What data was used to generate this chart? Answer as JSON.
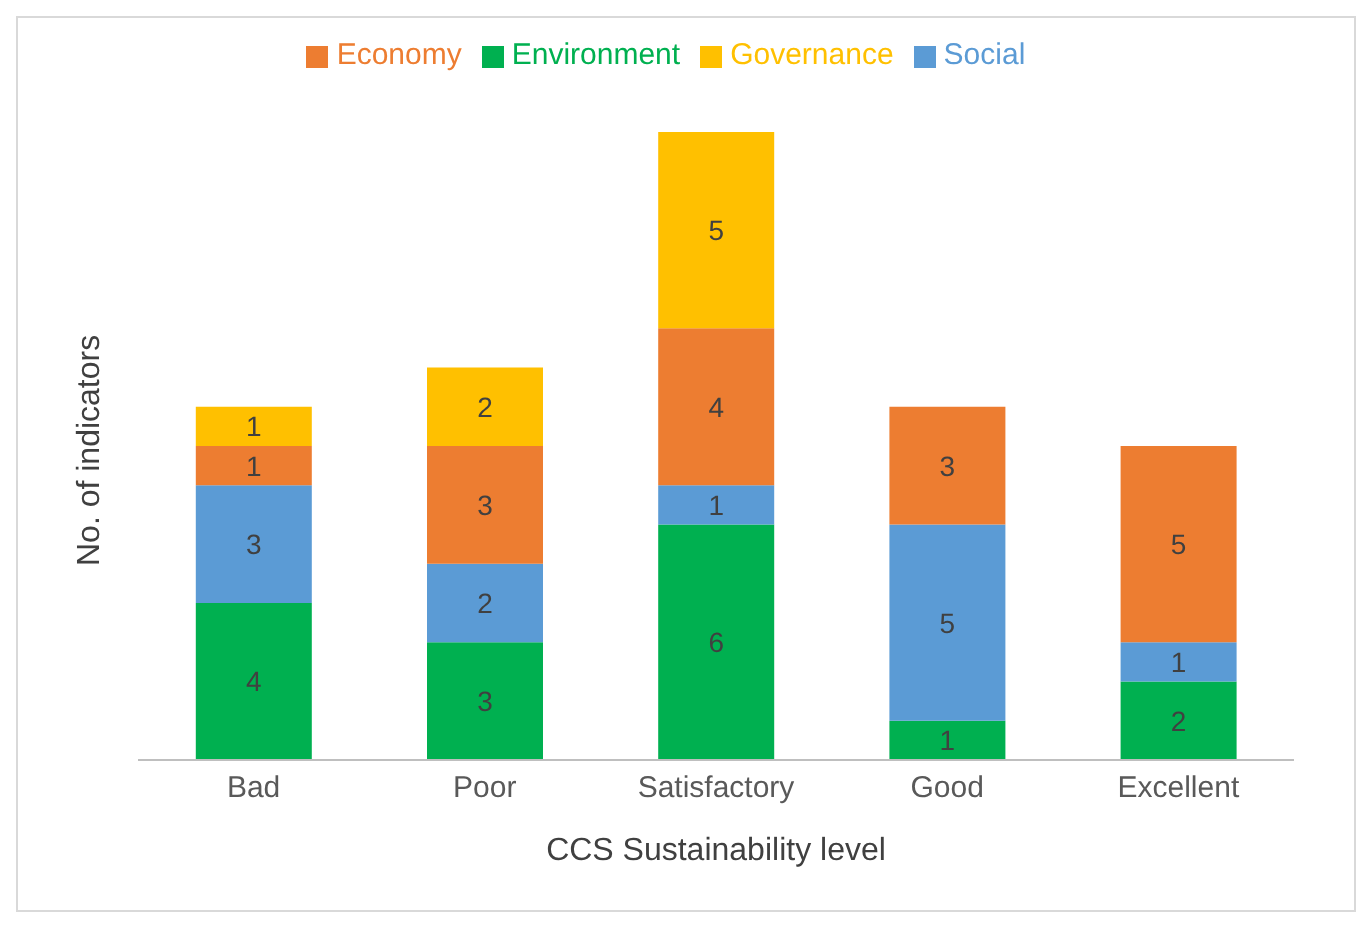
{
  "chart_data": {
    "type": "bar",
    "stacked": true,
    "xlabel": "CCS Sustainability level",
    "ylabel": "No. of indicators",
    "categories": [
      "Bad",
      "Poor",
      "Satisfactory",
      "Good",
      "Excellent"
    ],
    "series": [
      {
        "name": "Environment",
        "color": "#00b050",
        "values": [
          4,
          3,
          6,
          1,
          2
        ]
      },
      {
        "name": "Social",
        "color": "#5b9bd5",
        "values": [
          3,
          2,
          1,
          5,
          1
        ]
      },
      {
        "name": "Economy",
        "color": "#ed7d31",
        "values": [
          1,
          3,
          4,
          3,
          5
        ]
      },
      {
        "name": "Governance",
        "color": "#ffc000",
        "values": [
          1,
          2,
          5,
          null,
          null
        ]
      }
    ],
    "data_labels": true,
    "legend": "top",
    "grid": false
  }
}
